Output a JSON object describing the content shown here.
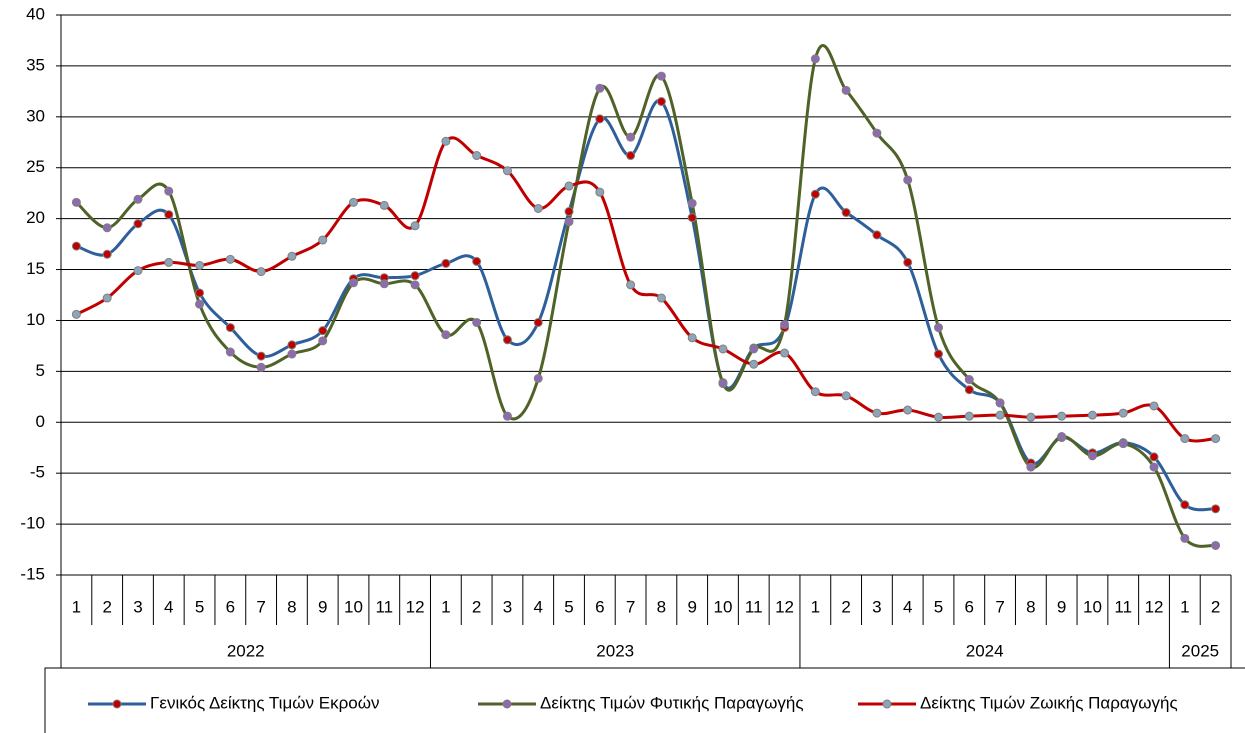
{
  "chart_data": {
    "type": "line",
    "categories": [
      "1",
      "2",
      "3",
      "4",
      "5",
      "6",
      "7",
      "8",
      "9",
      "10",
      "11",
      "12",
      "1",
      "2",
      "3",
      "4",
      "5",
      "6",
      "7",
      "8",
      "9",
      "10",
      "11",
      "12",
      "1",
      "2",
      "3",
      "4",
      "5",
      "6",
      "7",
      "8",
      "9",
      "10",
      "11",
      "12",
      "1",
      "2"
    ],
    "groups": [
      {
        "label": "2022",
        "span": 12
      },
      {
        "label": "2023",
        "span": 12
      },
      {
        "label": "2024",
        "span": 12
      },
      {
        "label": "2025",
        "span": 2
      }
    ],
    "series": [
      {
        "name": "Γενικός Δείκτης Τιμών Εκροών",
        "color": "#2e5f9a",
        "marker_color": "#c00000",
        "values": [
          17.3,
          16.5,
          19.5,
          20.4,
          12.7,
          9.3,
          6.5,
          7.6,
          9.0,
          14.1,
          14.2,
          14.4,
          15.6,
          15.8,
          8.1,
          9.8,
          20.7,
          29.8,
          26.2,
          31.5,
          20.1,
          3.9,
          7.3,
          9.3,
          22.4,
          20.6,
          18.4,
          15.7,
          6.7,
          3.2,
          1.9,
          -4.0,
          -1.5,
          -3.0,
          -2.0,
          -3.4,
          -8.1,
          -8.5
        ]
      },
      {
        "name": "Δείκτης Τιμών Φυτικής Παραγωγής",
        "color": "#4f6228",
        "marker_color": "#8e6bb0",
        "values": [
          21.6,
          19.1,
          21.9,
          22.7,
          11.6,
          6.9,
          5.4,
          6.7,
          8.0,
          13.7,
          13.6,
          13.5,
          8.6,
          9.8,
          0.6,
          4.3,
          19.7,
          32.8,
          28.0,
          34.0,
          21.5,
          3.8,
          7.2,
          9.6,
          35.7,
          32.6,
          28.4,
          23.8,
          9.3,
          4.2,
          1.9,
          -4.4,
          -1.4,
          -3.3,
          -2.1,
          -4.4,
          -11.4,
          -12.1
        ]
      },
      {
        "name": "Δείκτης Τιμών Ζωικής Παραγωγής",
        "color": "#c00000",
        "marker_color": "#8ea4b8",
        "values": [
          10.6,
          12.2,
          14.9,
          15.7,
          15.4,
          16.0,
          14.8,
          16.3,
          17.9,
          21.6,
          21.3,
          19.3,
          27.6,
          26.2,
          24.7,
          21.0,
          23.2,
          22.6,
          13.5,
          12.2,
          8.3,
          7.2,
          5.7,
          6.8,
          3.0,
          2.6,
          0.9,
          1.2,
          0.5,
          0.6,
          0.7,
          0.5,
          0.6,
          0.7,
          0.9,
          1.6,
          -1.6,
          -1.6
        ]
      }
    ],
    "ylim": [
      -15,
      40
    ],
    "yticks": [
      -15,
      -10,
      -5,
      0,
      5,
      10,
      15,
      20,
      25,
      30,
      35,
      40
    ],
    "grid": true,
    "legend": "bottom"
  }
}
